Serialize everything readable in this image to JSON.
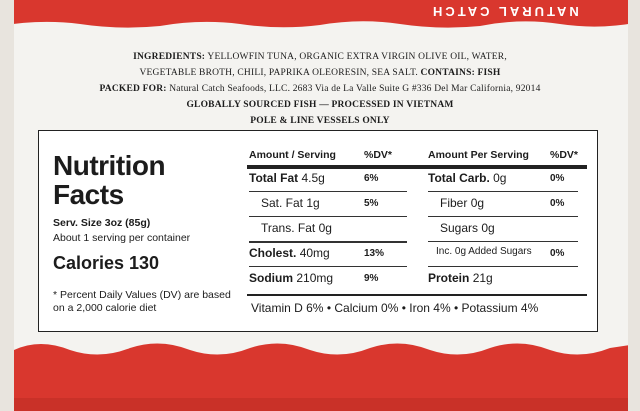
{
  "brand": "NATURAL CATCH",
  "ingredients": {
    "label": "INGREDIENTS:",
    "line1": "YELLOWFIN TUNA, ORGANIC EXTRA VIRGIN OLIVE OIL, WATER,",
    "line2": "VEGETABLE BROTH, CHILI, PAPRIKA OLEORESIN, SEA SALT.",
    "contains": "CONTAINS: FISH"
  },
  "packed_for": {
    "label": "PACKED FOR:",
    "text": "Natural Catch Seafoods, LLC. 2683 Via de La Valle Suite G #336 Del Mar California, 92014"
  },
  "sourcing": "GLOBALLY SOURCED FISH — PROCESSED IN VIETNAM",
  "vessels": "POLE & LINE VESSELS ONLY",
  "nutrition": {
    "title": "Nutrition Facts",
    "serving_size": "Serv. Size 3oz (85g)",
    "servings": "About 1 serving per container",
    "calories": "Calories 130",
    "footnote": "* Percent Daily Values (DV) are based on a 2,000 calorie diet",
    "headers": [
      "Amount / Serving",
      "%DV*",
      "Amount Per Serving",
      "%DV*"
    ],
    "left": [
      {
        "name": "Total Fat",
        "amount": "4.5g",
        "dv": "6%"
      },
      {
        "name": "Sat. Fat",
        "amount": "1g",
        "dv": "5%"
      },
      {
        "name": "Trans. Fat",
        "amount": "0g"
      },
      {
        "name": "Cholest.",
        "amount": "40mg",
        "dv": "13%"
      },
      {
        "name": "Sodium",
        "amount": "210mg",
        "dv": "9%"
      }
    ],
    "right": [
      {
        "name": "Total Carb.",
        "amount": "0g",
        "dv": "0%"
      },
      {
        "name": "Fiber",
        "amount": "0g",
        "dv": "0%"
      },
      {
        "name": "Sugars",
        "amount": "0g"
      },
      {
        "name": "Inc. 0g Added Sugars",
        "dv": "0%"
      },
      {
        "name": "Protein",
        "amount": "21g"
      }
    ],
    "vitamins": [
      "Vitamin D 6%",
      "Calcium 0%",
      "Iron 4%",
      "Potassium 4%"
    ],
    "separator": "•"
  }
}
